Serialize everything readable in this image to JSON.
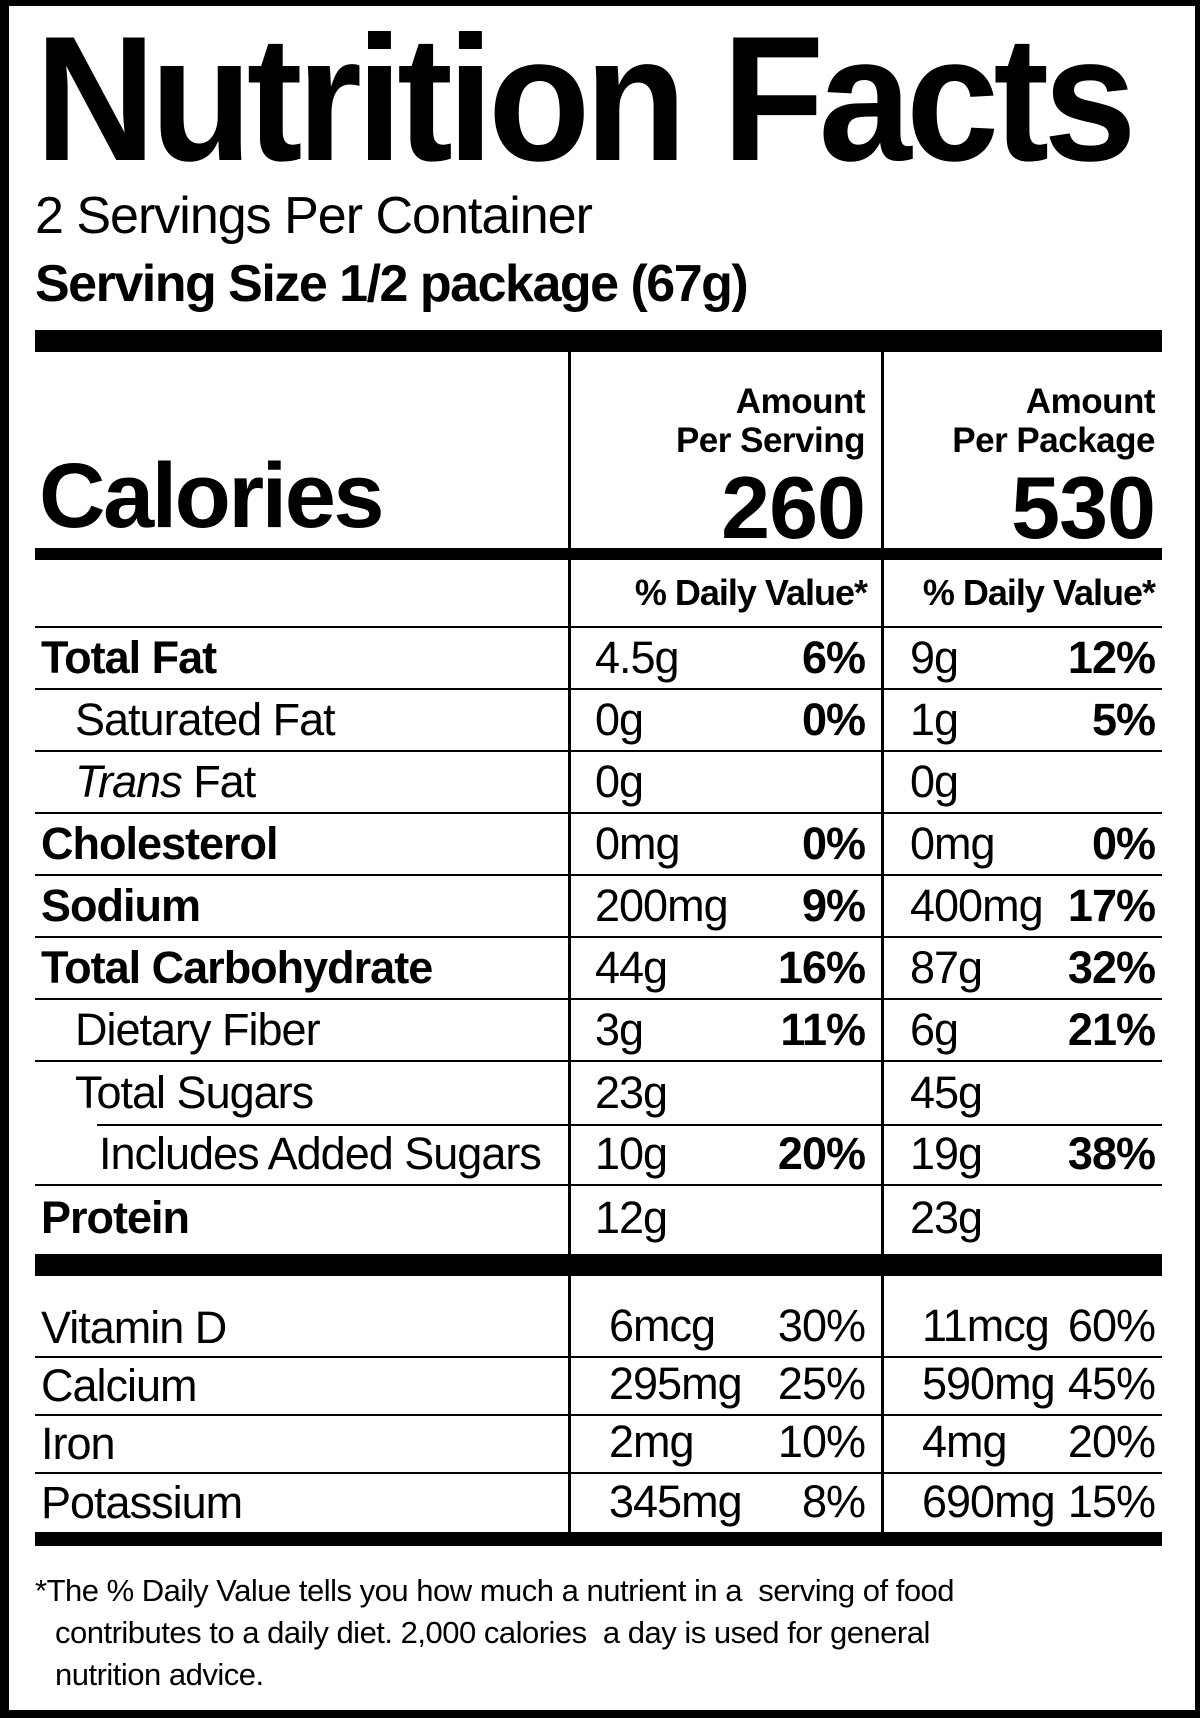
{
  "title": "Nutrition Facts",
  "serving_info": {
    "servings_per_container": "2 Servings Per Container",
    "serving_size": "Serving Size 1/2 package (67g)"
  },
  "calories_row": {
    "label": "Calories",
    "serving": {
      "header_line1": "Amount",
      "header_line2": "Per Serving",
      "value": "260"
    },
    "package": {
      "header_line1": "Amount",
      "header_line2": "Per Package",
      "value": "530"
    }
  },
  "daily_value_header": {
    "serving": "% Daily Value*",
    "package": "% Daily Value*"
  },
  "nutrients": [
    {
      "name": "Total Fat",
      "bold": true,
      "indent": 0,
      "serving_amount": "4.5g",
      "serving_dv": "6%",
      "package_amount": "9g",
      "package_dv": "12%"
    },
    {
      "name": "Saturated Fat",
      "bold": false,
      "indent": 1,
      "serving_amount": "0g",
      "serving_dv": "0%",
      "package_amount": "1g",
      "package_dv": "5%"
    },
    {
      "name": "Trans Fat",
      "bold": false,
      "indent": 1,
      "italic_first_word": true,
      "serving_amount": "0g",
      "serving_dv": "",
      "package_amount": "0g",
      "package_dv": ""
    },
    {
      "name": "Cholesterol",
      "bold": true,
      "indent": 0,
      "serving_amount": "0mg",
      "serving_dv": "0%",
      "package_amount": "0mg",
      "package_dv": "0%"
    },
    {
      "name": "Sodium",
      "bold": true,
      "indent": 0,
      "serving_amount": "200mg",
      "serving_dv": "9%",
      "package_amount": "400mg",
      "package_dv": "17%"
    },
    {
      "name": "Total Carbohydrate",
      "bold": true,
      "indent": 0,
      "serving_amount": "44g",
      "serving_dv": "16%",
      "package_amount": "87g",
      "package_dv": "32%"
    },
    {
      "name": "Dietary Fiber",
      "bold": false,
      "indent": 1,
      "serving_amount": "3g",
      "serving_dv": "11%",
      "package_amount": "6g",
      "package_dv": "21%"
    },
    {
      "name": "Total Sugars",
      "bold": false,
      "indent": 1,
      "no_rule_below": true,
      "serving_amount": "23g",
      "serving_dv": "",
      "package_amount": "45g",
      "package_dv": ""
    },
    {
      "name": "Includes Added Sugars",
      "bold": false,
      "indent": 2,
      "inset_rule_above": true,
      "serving_amount": "10g",
      "serving_dv": "20%",
      "package_amount": "19g",
      "package_dv": "38%"
    },
    {
      "name": "Protein",
      "bold": true,
      "indent": 0,
      "protein_row": true,
      "serving_amount": "12g",
      "serving_dv": "",
      "package_amount": "23g",
      "package_dv": ""
    }
  ],
  "vitamins": [
    {
      "name": "Vitamin D",
      "serving_amount": "6mcg",
      "serving_dv": "30%",
      "package_amount": "11mcg",
      "package_dv": "60%"
    },
    {
      "name": "Calcium",
      "serving_amount": "295mg",
      "serving_dv": "25%",
      "package_amount": "590mg",
      "package_dv": "45%"
    },
    {
      "name": "Iron",
      "serving_amount": "2mg",
      "serving_dv": "10%",
      "package_amount": "4mg",
      "package_dv": "20%"
    },
    {
      "name": "Potassium",
      "serving_amount": "345mg",
      "serving_dv": "8%",
      "package_amount": "690mg",
      "package_dv": "15%"
    }
  ],
  "footnote_lines": [
    "*The % Daily Value tells you how much a nutrient in a  serving of food",
    "contributes to a daily diet. 2,000 calories  a day is used for general",
    "nutrition advice."
  ]
}
